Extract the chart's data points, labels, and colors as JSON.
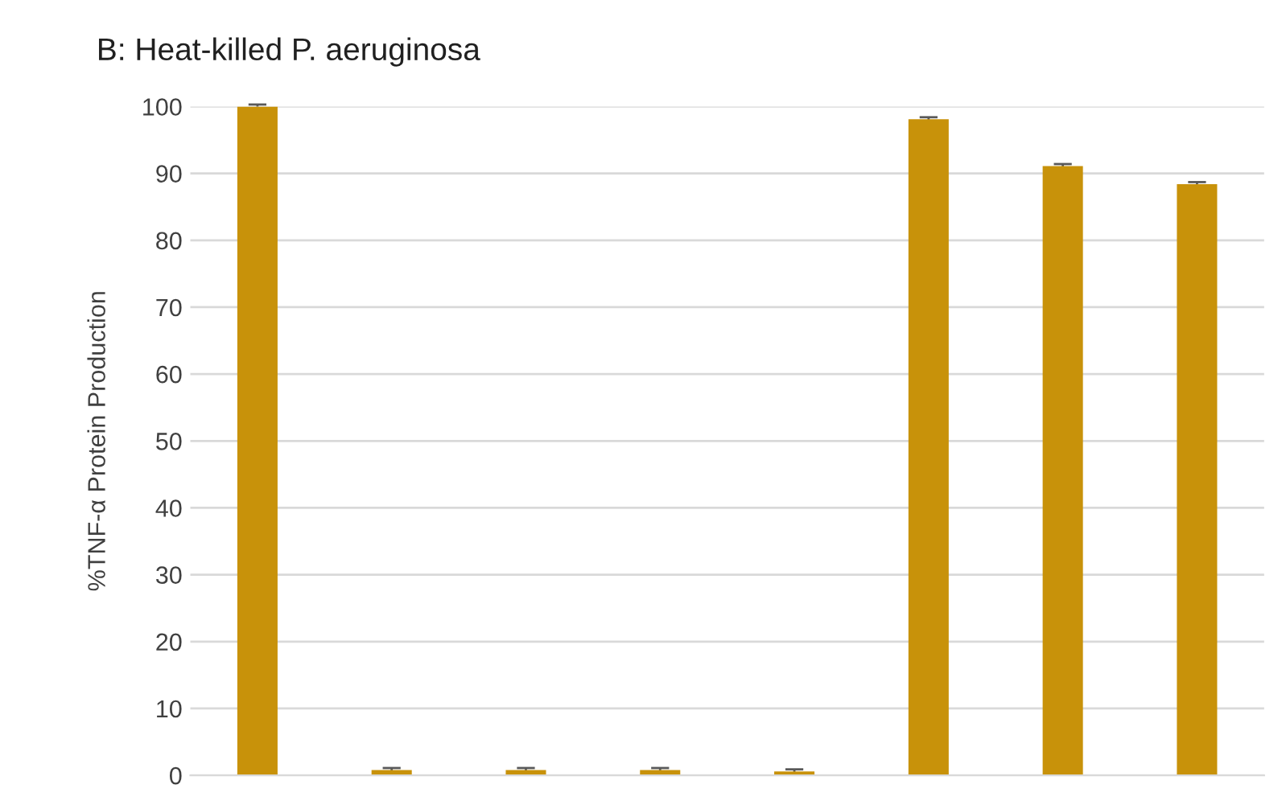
{
  "chart_data": {
    "type": "bar",
    "title": "B: Heat-killed P. aeruginosa",
    "ylabel": "%TNF-α Protein Production",
    "categories": [
      null,
      null,
      null,
      null,
      null,
      null,
      null,
      null
    ],
    "values": [
      100,
      0.8,
      0.8,
      0.8,
      0.6,
      98.1,
      91.1,
      88.4
    ],
    "errors": [
      0.3,
      0.3,
      0.3,
      0.3,
      0.3,
      0.3,
      0.3,
      0.3
    ],
    "color": "#c8920a",
    "ylim": [
      0,
      100
    ],
    "yticks": [
      0,
      10,
      20,
      30,
      40,
      50,
      60,
      70,
      80,
      90,
      100
    ],
    "grid": "y"
  }
}
